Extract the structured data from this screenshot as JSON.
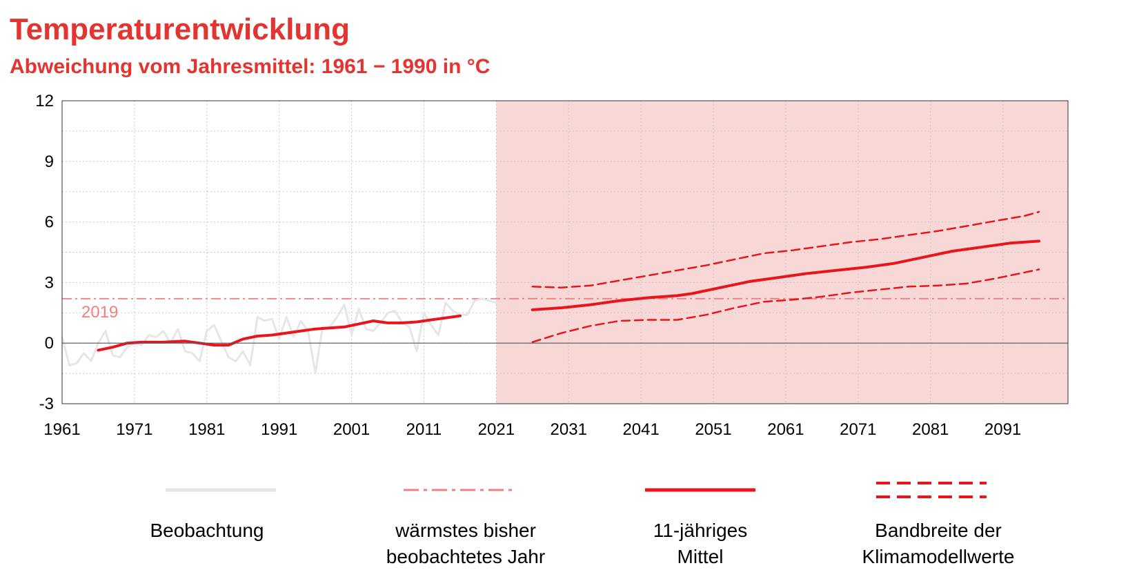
{
  "title": "Temperaturentwicklung",
  "subtitle": "Abweichung vom Jahresmittel: 1961 − 1990 in °C",
  "annotation_2019": "2019",
  "colors": {
    "accent": "#e3342f",
    "observation": "#e6e6e6",
    "reference": "#f08080",
    "projection_bg": "#f8d7d7"
  },
  "legend": [
    {
      "label_line1": "Beobachtung",
      "label_line2": ""
    },
    {
      "label_line1": "wärmstes bisher",
      "label_line2": "beobachtetes Jahr"
    },
    {
      "label_line1": "11-jähriges",
      "label_line2": "Mittel"
    },
    {
      "label_line1": "Bandbreite der",
      "label_line2": "Klimamodellwerte"
    }
  ],
  "chart_data": {
    "type": "line",
    "xlim": [
      1961,
      2100
    ],
    "ylim": [
      -3,
      12
    ],
    "x_ticks": [
      "1961",
      "1971",
      "1981",
      "1991",
      "2001",
      "2011",
      "2021",
      "2031",
      "2041",
      "2051",
      "2061",
      "2071",
      "2081",
      "2091"
    ],
    "y_ticks": [
      "12",
      "9",
      "6",
      "3",
      "0",
      "-3"
    ],
    "grid": true,
    "projection_start": 2021,
    "warmest_year_value": 2.2,
    "series": [
      {
        "name": "Beobachtung",
        "x": [
          1961,
          1962,
          1963,
          1964,
          1965,
          1966,
          1967,
          1968,
          1969,
          1970,
          1971,
          1972,
          1973,
          1974,
          1975,
          1976,
          1977,
          1978,
          1979,
          1980,
          1981,
          1982,
          1983,
          1984,
          1985,
          1986,
          1987,
          1988,
          1989,
          1990,
          1991,
          1992,
          1993,
          1994,
          1995,
          1996,
          1997,
          1998,
          1999,
          2000,
          2001,
          2002,
          2003,
          2004,
          2005,
          2006,
          2007,
          2008,
          2009,
          2010,
          2011,
          2012,
          2013,
          2014,
          2015,
          2016,
          2017,
          2018,
          2019,
          2020,
          2021
        ],
        "y": [
          0.3,
          -1.1,
          -1.0,
          -0.5,
          -0.9,
          0.0,
          0.6,
          -0.6,
          -0.7,
          -0.2,
          0.0,
          -0.1,
          0.4,
          0.3,
          0.6,
          0.0,
          0.7,
          -0.4,
          -0.5,
          -0.9,
          0.6,
          0.9,
          0.1,
          -0.7,
          -0.9,
          -0.4,
          -1.1,
          1.3,
          1.1,
          1.2,
          0.2,
          1.3,
          0.3,
          1.1,
          0.6,
          -1.5,
          0.8,
          0.8,
          1.3,
          1.9,
          0.4,
          1.7,
          0.7,
          0.6,
          1.0,
          1.5,
          1.6,
          1.0,
          0.8,
          -0.4,
          1.5,
          0.9,
          0.4,
          2.0,
          1.6,
          1.4,
          1.4,
          2.1,
          2.2,
          2.1,
          2.0
        ]
      },
      {
        "name": "11-jähriges Mittel",
        "x": [
          1966,
          1968,
          1970,
          1972,
          1975,
          1978,
          1980,
          1982,
          1984,
          1986,
          1988,
          1990,
          1992,
          1994,
          1996,
          1998,
          2000,
          2002,
          2004,
          2006,
          2008,
          2010,
          2012,
          2014,
          2016
        ],
        "y": [
          -0.35,
          -0.2,
          0.0,
          0.05,
          0.05,
          0.1,
          0.0,
          -0.1,
          -0.1,
          0.2,
          0.35,
          0.4,
          0.5,
          0.6,
          0.7,
          0.75,
          0.8,
          0.95,
          1.1,
          1.0,
          1.0,
          1.05,
          1.15,
          1.25,
          1.35
        ]
      },
      {
        "name": "11-jähriges Mittel (Projektion)",
        "x": [
          2026,
          2030,
          2034,
          2038,
          2042,
          2046,
          2048,
          2052,
          2056,
          2060,
          2064,
          2068,
          2072,
          2076,
          2080,
          2084,
          2088,
          2092,
          2096
        ],
        "y": [
          1.65,
          1.75,
          1.9,
          2.1,
          2.25,
          2.35,
          2.45,
          2.75,
          3.05,
          3.25,
          3.45,
          3.6,
          3.75,
          3.95,
          4.25,
          4.55,
          4.75,
          4.95,
          5.05
        ]
      },
      {
        "name": "Bandbreite oben",
        "x": [
          2026,
          2030,
          2034,
          2038,
          2042,
          2046,
          2050,
          2054,
          2058,
          2062,
          2066,
          2070,
          2074,
          2078,
          2082,
          2086,
          2090,
          2094,
          2096
        ],
        "y": [
          2.8,
          2.75,
          2.85,
          3.1,
          3.35,
          3.6,
          3.85,
          4.15,
          4.45,
          4.6,
          4.8,
          5.0,
          5.15,
          5.35,
          5.55,
          5.8,
          6.05,
          6.3,
          6.5
        ]
      },
      {
        "name": "Bandbreite unten",
        "x": [
          2026,
          2030,
          2034,
          2038,
          2042,
          2046,
          2050,
          2054,
          2058,
          2062,
          2066,
          2070,
          2074,
          2078,
          2082,
          2086,
          2090,
          2094,
          2096
        ],
        "y": [
          0.05,
          0.5,
          0.85,
          1.1,
          1.15,
          1.15,
          1.4,
          1.75,
          2.05,
          2.15,
          2.3,
          2.5,
          2.65,
          2.8,
          2.85,
          2.95,
          3.2,
          3.5,
          3.65
        ]
      }
    ]
  }
}
